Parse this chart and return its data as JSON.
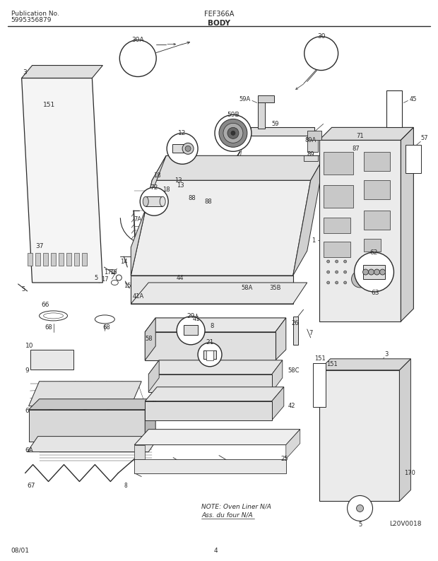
{
  "title_center": "FEF366A",
  "title_body": "BODY",
  "pub_no": "Publication No.",
  "pub_num": "5995356879",
  "date": "08/01",
  "page": "4",
  "logo": "L20V0018",
  "note_line1": "NOTE: Oven Liner N/A",
  "note_line2": "Ass. du four N/A",
  "bg_color": "#ffffff",
  "lc": "#2a2a2a",
  "tc": "#2a2a2a",
  "fig_width": 6.2,
  "fig_height": 7.94,
  "dpi": 100
}
